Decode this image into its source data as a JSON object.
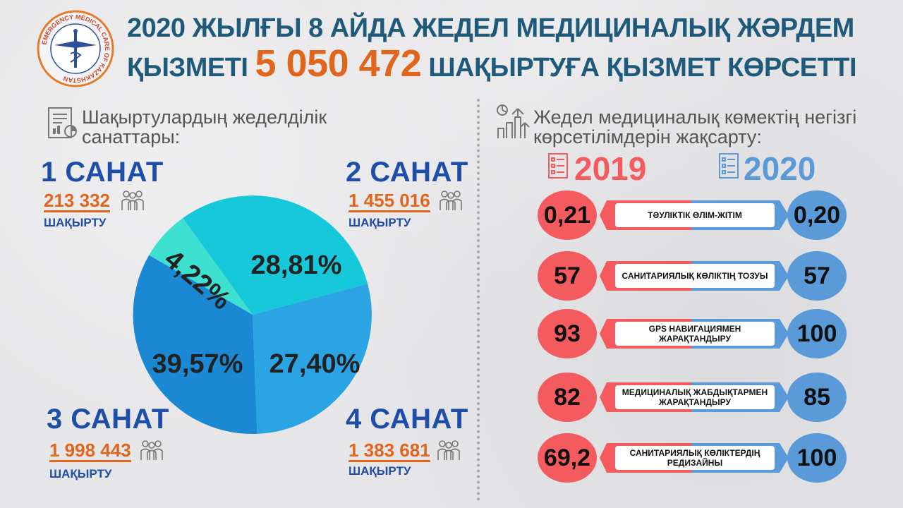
{
  "header": {
    "line1": "2020 ЖЫЛҒЫ 8 АЙДА ЖЕДЕЛ МЕДИЦИНАЛЫҚ ЖӘРДЕМ",
    "line2_prefix": "ҚЫЗМЕТІ",
    "line2_number": "5 050 472",
    "line2_suffix": "ШАҚЫРТУҒА ҚЫЗМЕТ КӨРСЕТТІ",
    "logo_text": "EMERGENCY MEDICAL CARE OF KAZAKHSTAN"
  },
  "left": {
    "title": "Шақыртулардың жеделділік санаттары:",
    "categories": [
      {
        "label": "1 САНАТ",
        "count": "213 332",
        "unit": "ШАҚЫРТУ",
        "percent": "4,22%"
      },
      {
        "label": "2 САНАТ",
        "count": "1 455 016",
        "unit": "ШАҚЫРТУ",
        "percent": "28,81%"
      },
      {
        "label": "3 САНАТ",
        "count": "1 998 443",
        "unit": "ШАҚЫРТУ",
        "percent": "39,57%"
      },
      {
        "label": "4 САНАТ",
        "count": "1 383 681",
        "unit": "ШАҚЫРТУ",
        "percent": "27,40%"
      }
    ],
    "colors": {
      "cat1": "#3ee0d0",
      "cat2": "#17c7da",
      "cat3": "#1a88d2",
      "cat4": "#2aa4e2"
    }
  },
  "right": {
    "title": "Жедел медициналық көмектің негізгі көрсетілімдерін жақсарту:",
    "year_a": "2019",
    "year_b": "2020",
    "colors": {
      "a": "#f35b5f",
      "b": "#5a9ad8"
    },
    "rows": [
      {
        "a": "0,21",
        "label": "ТӘУЛІКТІК ӨЛІМ-ЖІТІМ",
        "b": "0,20"
      },
      {
        "a": "57",
        "label": "САНИТАРИЯЛЫҚ КӨЛІКТІҢ ТОЗУЫ",
        "b": "57"
      },
      {
        "a": "93",
        "label": "GPS НАВИГАЦИЯМЕН ЖАРАҚТАНДЫРУ",
        "b": "100"
      },
      {
        "a": "82",
        "label": "МЕДИЦИНАЛЫҚ ЖАБДЫҚТАРМЕН ЖАРАҚТАНДЫРУ",
        "b": "85"
      },
      {
        "a": "69,2",
        "label": "САНИТАРИЯЛЫҚ КӨЛІКТЕРДІҢ РЕДИЗАЙНЫ",
        "b": "100"
      }
    ]
  }
}
